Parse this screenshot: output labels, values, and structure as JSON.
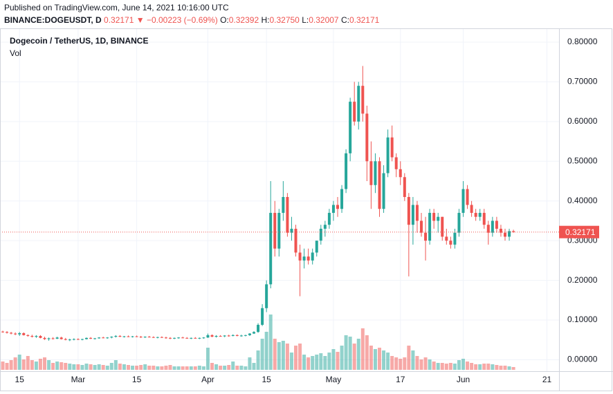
{
  "header": {
    "published": "Published on TradingView.com, June 14, 2021 10:16:00 UTC",
    "symbol": "BINANCE:DOGEUSDT, D",
    "change": "▼ −0.00223 (−0.69%)",
    "ohlc": [
      {
        "key": "O:",
        "value": "0.32392"
      },
      {
        "key": "H:",
        "value": "0.32750"
      },
      {
        "key": "L:",
        "value": "0.32007"
      },
      {
        "key": "C:",
        "value": "0.32171"
      }
    ]
  },
  "chart_data": {
    "type": "candlestick",
    "legend": "Dogecoin / TetherUS, 1D, BINANCE",
    "volume_label": "Vol",
    "up_color": "#26a69a",
    "down_color": "#ef5350",
    "grid": true,
    "categories": [
      null,
      null,
      null,
      null,
      "15",
      null,
      null,
      null,
      null,
      null,
      null,
      null,
      null,
      null,
      null,
      null,
      null,
      null,
      "Mar",
      null,
      null,
      null,
      null,
      null,
      null,
      null,
      null,
      null,
      null,
      null,
      null,
      null,
      "15",
      null,
      null,
      null,
      null,
      null,
      null,
      null,
      null,
      null,
      null,
      null,
      null,
      null,
      null,
      null,
      null,
      "Apr",
      null,
      null,
      null,
      null,
      null,
      null,
      null,
      null,
      null,
      null,
      null,
      null,
      null,
      "15",
      null,
      null,
      null,
      null,
      null,
      null,
      null,
      null,
      null,
      null,
      null,
      null,
      null,
      null,
      null,
      "May",
      null,
      null,
      null,
      null,
      null,
      null,
      null,
      null,
      null,
      null,
      null,
      null,
      null,
      null,
      null,
      "17",
      null,
      null,
      null,
      null,
      null,
      null,
      null,
      null,
      null,
      null,
      null,
      null,
      null,
      null,
      "Jun",
      null,
      null,
      null,
      null,
      null,
      null,
      null,
      null,
      null,
      null,
      null,
      null,
      null,
      null,
      null,
      null,
      null,
      null,
      null,
      "21",
      null
    ],
    "open": [
      0.071,
      0.07,
      0.068,
      0.066,
      0.064,
      0.067,
      0.062,
      0.06,
      0.058,
      0.06,
      0.055,
      0.052,
      0.054,
      0.053,
      0.056,
      0.052,
      0.05,
      0.051,
      0.052,
      0.051,
      0.052,
      0.055,
      0.053,
      0.054,
      0.056,
      0.055,
      0.056,
      0.058,
      0.06,
      0.058,
      0.059,
      0.058,
      0.059,
      0.058,
      0.057,
      0.058,
      0.057,
      0.056,
      0.057,
      0.056,
      0.055,
      0.054,
      0.055,
      0.056,
      0.055,
      0.054,
      0.055,
      0.054,
      0.055,
      0.056,
      0.062,
      0.058,
      0.06,
      0.059,
      0.061,
      0.06,
      0.062,
      0.06,
      0.061,
      0.062,
      0.066,
      0.07,
      0.088,
      0.13,
      0.19,
      0.37,
      0.28,
      0.37,
      0.41,
      0.32,
      0.33,
      0.27,
      0.25,
      0.26,
      0.25,
      0.27,
      0.3,
      0.33,
      0.34,
      0.37,
      0.39,
      0.38,
      0.43,
      0.52,
      0.65,
      0.6,
      0.69,
      0.62,
      0.5,
      0.44,
      0.5,
      0.38,
      0.47,
      0.56,
      0.51,
      0.48,
      0.46,
      0.41,
      0.34,
      0.39,
      0.35,
      0.32,
      0.3,
      0.37,
      0.35,
      0.36,
      0.31,
      0.3,
      0.29,
      0.32,
      0.37,
      0.43,
      0.39,
      0.37,
      0.36,
      0.37,
      0.34,
      0.32,
      0.35,
      0.33,
      0.32,
      0.31,
      0.32392,
      null,
      null,
      null,
      null,
      null,
      null,
      null,
      null,
      null
    ],
    "high": [
      0.073,
      0.072,
      0.07,
      0.069,
      0.07,
      0.069,
      0.064,
      0.063,
      0.062,
      0.062,
      0.058,
      0.056,
      0.057,
      0.058,
      0.058,
      0.055,
      0.053,
      0.054,
      0.054,
      0.053,
      0.056,
      0.057,
      0.055,
      0.057,
      0.058,
      0.057,
      0.059,
      0.062,
      0.062,
      0.06,
      0.061,
      0.06,
      0.061,
      0.06,
      0.059,
      0.06,
      0.059,
      0.058,
      0.059,
      0.058,
      0.057,
      0.056,
      0.057,
      0.058,
      0.057,
      0.056,
      0.057,
      0.056,
      0.057,
      0.066,
      0.064,
      0.062,
      0.062,
      0.062,
      0.063,
      0.064,
      0.064,
      0.063,
      0.063,
      0.067,
      0.072,
      0.092,
      0.14,
      0.2,
      0.45,
      0.4,
      0.38,
      0.45,
      0.42,
      0.36,
      0.34,
      0.29,
      0.28,
      0.28,
      0.28,
      0.3,
      0.34,
      0.35,
      0.38,
      0.4,
      0.41,
      0.44,
      0.53,
      0.66,
      0.7,
      0.7,
      0.74,
      0.64,
      0.55,
      0.52,
      0.51,
      0.49,
      0.58,
      0.59,
      0.52,
      0.5,
      0.47,
      0.42,
      0.41,
      0.4,
      0.37,
      0.36,
      0.38,
      0.38,
      0.37,
      0.36,
      0.33,
      0.31,
      0.33,
      0.38,
      0.45,
      0.44,
      0.4,
      0.38,
      0.38,
      0.38,
      0.35,
      0.36,
      0.36,
      0.34,
      0.33,
      0.33,
      0.3275,
      null,
      null,
      null,
      null,
      null,
      null,
      null,
      null,
      null
    ],
    "low": [
      0.068,
      0.066,
      0.064,
      0.062,
      0.06,
      0.061,
      0.058,
      0.056,
      0.055,
      0.054,
      0.05,
      0.048,
      0.051,
      0.052,
      0.051,
      0.049,
      0.047,
      0.049,
      0.05,
      0.049,
      0.051,
      0.052,
      0.051,
      0.053,
      0.054,
      0.053,
      0.054,
      0.056,
      0.057,
      0.056,
      0.057,
      0.056,
      0.057,
      0.055,
      0.055,
      0.056,
      0.055,
      0.054,
      0.055,
      0.053,
      0.052,
      0.052,
      0.053,
      0.054,
      0.053,
      0.052,
      0.053,
      0.052,
      0.053,
      0.055,
      0.057,
      0.056,
      0.058,
      0.057,
      0.058,
      0.059,
      0.059,
      0.058,
      0.059,
      0.06,
      0.065,
      0.068,
      0.085,
      0.12,
      0.18,
      0.26,
      0.26,
      0.35,
      0.31,
      0.3,
      0.26,
      0.16,
      0.23,
      0.24,
      0.24,
      0.26,
      0.29,
      0.31,
      0.33,
      0.35,
      0.36,
      0.37,
      0.42,
      0.5,
      0.59,
      0.58,
      0.6,
      0.45,
      0.38,
      0.42,
      0.36,
      0.37,
      0.46,
      0.5,
      0.46,
      0.44,
      0.4,
      0.21,
      0.29,
      0.32,
      0.31,
      0.25,
      0.29,
      0.33,
      0.32,
      0.3,
      0.29,
      0.28,
      0.28,
      0.31,
      0.36,
      0.38,
      0.36,
      0.35,
      0.35,
      0.33,
      0.29,
      0.31,
      0.32,
      0.31,
      0.3,
      0.3,
      0.32007,
      null,
      null,
      null,
      null,
      null,
      null,
      null,
      null,
      null
    ],
    "close": [
      0.07,
      0.068,
      0.066,
      0.064,
      0.067,
      0.062,
      0.06,
      0.058,
      0.06,
      0.055,
      0.052,
      0.054,
      0.053,
      0.056,
      0.052,
      0.05,
      0.051,
      0.052,
      0.051,
      0.052,
      0.055,
      0.053,
      0.054,
      0.056,
      0.055,
      0.056,
      0.058,
      0.06,
      0.058,
      0.059,
      0.058,
      0.059,
      0.058,
      0.057,
      0.058,
      0.057,
      0.056,
      0.057,
      0.056,
      0.055,
      0.054,
      0.055,
      0.056,
      0.055,
      0.054,
      0.055,
      0.054,
      0.055,
      0.056,
      0.062,
      0.058,
      0.06,
      0.059,
      0.061,
      0.06,
      0.062,
      0.06,
      0.061,
      0.062,
      0.066,
      0.07,
      0.088,
      0.13,
      0.19,
      0.37,
      0.28,
      0.37,
      0.41,
      0.32,
      0.33,
      0.27,
      0.25,
      0.26,
      0.25,
      0.27,
      0.3,
      0.33,
      0.34,
      0.37,
      0.39,
      0.38,
      0.43,
      0.52,
      0.65,
      0.6,
      0.69,
      0.62,
      0.5,
      0.44,
      0.5,
      0.38,
      0.47,
      0.56,
      0.51,
      0.48,
      0.46,
      0.41,
      0.34,
      0.39,
      0.35,
      0.32,
      0.3,
      0.37,
      0.35,
      0.36,
      0.31,
      0.3,
      0.29,
      0.32,
      0.37,
      0.43,
      0.39,
      0.37,
      0.36,
      0.37,
      0.34,
      0.32,
      0.35,
      0.33,
      0.32,
      0.31,
      0.324,
      0.32171,
      null,
      null,
      null,
      null,
      null,
      null,
      null,
      null,
      null
    ],
    "volume": [
      12,
      10,
      14,
      18,
      22,
      15,
      20,
      14,
      12,
      16,
      18,
      14,
      10,
      12,
      11,
      10,
      9,
      8,
      8,
      7,
      9,
      8,
      7,
      8,
      7,
      6,
      10,
      14,
      9,
      8,
      7,
      6,
      6,
      7,
      8,
      6,
      6,
      5,
      5,
      6,
      7,
      5,
      5,
      5,
      5,
      5,
      5,
      6,
      5,
      32,
      10,
      8,
      6,
      6,
      7,
      12,
      6,
      6,
      5,
      18,
      10,
      28,
      45,
      55,
      80,
      45,
      40,
      42,
      38,
      25,
      35,
      38,
      22,
      18,
      20,
      22,
      24,
      20,
      25,
      30,
      26,
      35,
      50,
      48,
      38,
      45,
      60,
      50,
      35,
      30,
      32,
      28,
      25,
      20,
      18,
      16,
      18,
      35,
      28,
      20,
      15,
      18,
      15,
      12,
      10,
      10,
      9,
      10,
      9,
      14,
      16,
      12,
      10,
      8,
      8,
      9,
      9,
      8,
      7,
      6,
      6,
      5,
      4,
      null,
      null,
      null,
      null,
      null,
      null,
      null,
      null,
      null
    ],
    "ylim": [
      -0.0288,
      0.8348
    ],
    "yticks": [
      {
        "value": 0,
        "label": "0.00000"
      },
      {
        "value": 0.1,
        "label": "0.10000"
      },
      {
        "value": 0.2,
        "label": "0.20000"
      },
      {
        "value": 0.3,
        "label": "0.30000"
      },
      {
        "value": 0.4,
        "label": "0.40000"
      },
      {
        "value": 0.5,
        "label": "0.50000"
      },
      {
        "value": 0.6,
        "label": "0.60000"
      },
      {
        "value": 0.7,
        "label": "0.70000"
      },
      {
        "value": 0.8,
        "label": "0.80000"
      }
    ]
  }
}
